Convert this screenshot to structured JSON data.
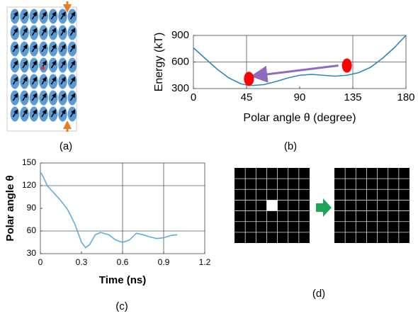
{
  "panel_labels": [
    "(a)",
    "(b)",
    "(c)",
    "(d)"
  ],
  "chart_data": [
    {
      "type": "line",
      "xlabel": "Polar angle θ (degree)",
      "ylabel": "Energy (kT)",
      "x": [
        0,
        10,
        20,
        30,
        40,
        45,
        50,
        60,
        70,
        80,
        90,
        100,
        110,
        120,
        130,
        140,
        150,
        160,
        170,
        180
      ],
      "series": [
        {
          "color": "#2e86c1",
          "values": [
            760,
            640,
            520,
            420,
            355,
            340,
            335,
            345,
            380,
            420,
            450,
            460,
            450,
            440,
            450,
            480,
            540,
            640,
            760,
            900
          ]
        }
      ],
      "markers": {
        "color": "#ff0000",
        "x": [
          47,
          130
        ],
        "y": [
          410,
          560
        ]
      },
      "xlim": [
        0,
        180
      ],
      "xticks": [
        0,
        45,
        90,
        135,
        180
      ],
      "ylim": [
        300,
        900
      ],
      "yticks": [
        300,
        600,
        900
      ],
      "xgrid": [
        45,
        135
      ],
      "ygrid": [
        600
      ]
    },
    {
      "type": "line",
      "xlabel": "Time (ns)",
      "ylabel": "Polar angle θ",
      "x": [
        0,
        0.02,
        0.05,
        0.1,
        0.15,
        0.2,
        0.25,
        0.3,
        0.33,
        0.36,
        0.4,
        0.44,
        0.5,
        0.55,
        0.6,
        0.65,
        0.7,
        0.75,
        0.8,
        0.85,
        0.9,
        0.95,
        1.0
      ],
      "series": [
        {
          "color": "#5dade2",
          "values": [
            138,
            132,
            120,
            110,
            100,
            88,
            70,
            45,
            38,
            42,
            55,
            58,
            55,
            48,
            45,
            48,
            57,
            55,
            52,
            50,
            51,
            54,
            55
          ]
        }
      ],
      "xlim": [
        0,
        1.2
      ],
      "xticks": [
        0,
        0.3,
        0.6,
        0.9,
        1.2
      ],
      "ylim": [
        30,
        150
      ],
      "yticks": [
        30,
        60,
        90,
        120,
        150
      ],
      "xgrid": [
        0.6,
        0.9
      ],
      "ygrid": [
        60,
        120
      ]
    }
  ]
}
